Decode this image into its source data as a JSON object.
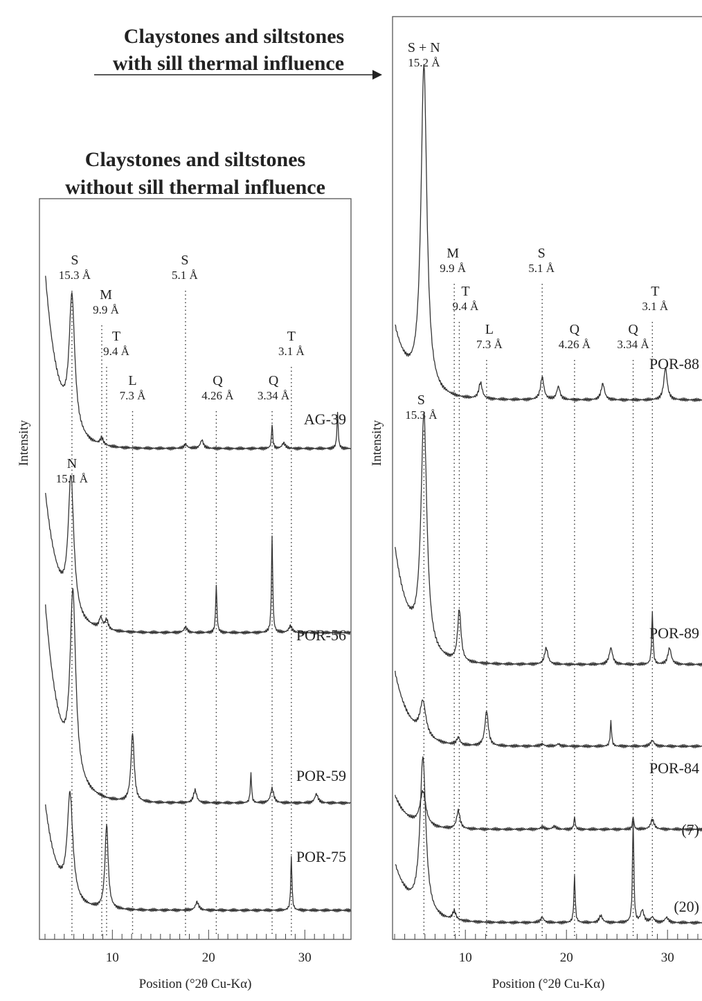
{
  "headings": {
    "left": [
      "Claystones and siltstones",
      "without sill thermal influence"
    ],
    "right": [
      "Claystones and siltstones",
      "with sill thermal influence"
    ]
  },
  "chart_data": [
    {
      "type": "line",
      "xlabel": "Position (°2θ Cu-Kα)",
      "ylabel": "Intensity",
      "xlim": [
        3,
        35
      ],
      "xticks": [
        10,
        20,
        30
      ],
      "grid": false,
      "peak_markers": [
        {
          "mineral": "S",
          "d": "15.3 Å",
          "x": 5.8
        },
        {
          "mineral": "M",
          "d": "9.9 Å",
          "x": 8.9
        },
        {
          "mineral": "T",
          "d": "9.4 Å",
          "x": 9.4
        },
        {
          "mineral": "L",
          "d": "7.3 Å",
          "x": 12.1
        },
        {
          "mineral": "S",
          "d": "5.1 Å",
          "x": 17.6
        },
        {
          "mineral": "Q",
          "d": "4.26 Å",
          "x": 20.8
        },
        {
          "mineral": "Q",
          "d": "3.34 Å",
          "x": 26.6
        },
        {
          "mineral": "T",
          "d": "3.1 Å",
          "x": 28.6
        }
      ],
      "extra_labels": [
        {
          "mineral": "N",
          "d": "15.1 Å",
          "x": 5.8
        }
      ],
      "series": [
        {
          "name": "AG-39",
          "peaks": [
            [
              5.8,
              0.95
            ],
            [
              8.9,
              0.05
            ],
            [
              17.6,
              0.03
            ],
            [
              19.3,
              0.06
            ],
            [
              26.6,
              0.17
            ],
            [
              27.8,
              0.04
            ],
            [
              33.4,
              0.26
            ]
          ]
        },
        {
          "name": "POR-56",
          "peaks": [
            [
              5.7,
              1.0
            ],
            [
              8.8,
              0.08
            ],
            [
              9.4,
              0.07
            ],
            [
              17.6,
              0.04
            ],
            [
              20.8,
              0.35
            ],
            [
              26.6,
              0.71
            ],
            [
              28.5,
              0.05
            ]
          ]
        },
        {
          "name": "POR-59",
          "peaks": [
            [
              5.9,
              1.0
            ],
            [
              12.1,
              0.38
            ],
            [
              18.6,
              0.07
            ],
            [
              24.4,
              0.16
            ],
            [
              26.6,
              0.08
            ],
            [
              31.2,
              0.05
            ]
          ]
        },
        {
          "name": "POR-75",
          "peaks": [
            [
              5.6,
              0.75
            ],
            [
              9.4,
              0.61
            ],
            [
              18.8,
              0.06
            ],
            [
              28.6,
              0.38
            ]
          ]
        }
      ]
    },
    {
      "type": "line",
      "xlabel": "Position (°2θ Cu-Kα)",
      "ylabel": "Intensity",
      "xlim": [
        3,
        35
      ],
      "xticks": [
        10,
        20,
        30
      ],
      "grid": false,
      "peak_markers": [
        {
          "mineral": "S",
          "d": "15.3 Å",
          "x": 5.9
        },
        {
          "mineral": "M",
          "d": "9.9 Å",
          "x": 8.9
        },
        {
          "mineral": "T",
          "d": "9.4 Å",
          "x": 9.4
        },
        {
          "mineral": "L",
          "d": "7.3 Å",
          "x": 12.1
        },
        {
          "mineral": "S",
          "d": "5.1 Å",
          "x": 17.6
        },
        {
          "mineral": "Q",
          "d": "4.26 Å",
          "x": 20.8
        },
        {
          "mineral": "Q",
          "d": "3.34 Å",
          "x": 26.6
        },
        {
          "mineral": "T",
          "d": "3.1 Å",
          "x": 28.5
        }
      ],
      "extra_labels": [
        {
          "mineral": "S + N",
          "d": "15.2 Å",
          "x": 5.9
        }
      ],
      "series": [
        {
          "name": "POR-88",
          "peaks": [
            [
              5.9,
              1.0
            ],
            [
              11.5,
              0.05
            ],
            [
              17.6,
              0.07
            ],
            [
              19.2,
              0.04
            ],
            [
              23.6,
              0.05
            ],
            [
              29.8,
              0.1
            ]
          ]
        },
        {
          "name": "POR-89",
          "peaks": [
            [
              5.9,
              1.0
            ],
            [
              9.4,
              0.22
            ],
            [
              18.0,
              0.07
            ],
            [
              24.4,
              0.07
            ],
            [
              28.5,
              0.22
            ],
            [
              30.2,
              0.07
            ]
          ]
        },
        {
          "name": "POR-84",
          "peaks": [
            [
              5.8,
              0.46
            ],
            [
              9.3,
              0.1
            ],
            [
              12.1,
              0.47
            ],
            [
              17.6,
              0.03
            ],
            [
              19.2,
              0.03
            ],
            [
              24.4,
              0.33
            ],
            [
              28.5,
              0.08
            ]
          ]
        },
        {
          "name": "(7)",
          "peaks": [
            [
              5.8,
              0.45
            ],
            [
              9.3,
              0.24
            ],
            [
              17.6,
              0.03
            ],
            [
              18.8,
              0.04
            ],
            [
              20.8,
              0.16
            ],
            [
              26.6,
              0.17
            ],
            [
              28.5,
              0.13
            ]
          ]
        },
        {
          "name": "(20)",
          "peaks": [
            [
              5.8,
              0.9
            ],
            [
              8.9,
              0.05
            ],
            [
              17.6,
              0.03
            ],
            [
              20.8,
              0.27
            ],
            [
              23.4,
              0.04
            ],
            [
              26.6,
              0.59
            ],
            [
              27.5,
              0.07
            ],
            [
              28.5,
              0.03
            ],
            [
              29.9,
              0.03
            ]
          ]
        }
      ]
    }
  ]
}
